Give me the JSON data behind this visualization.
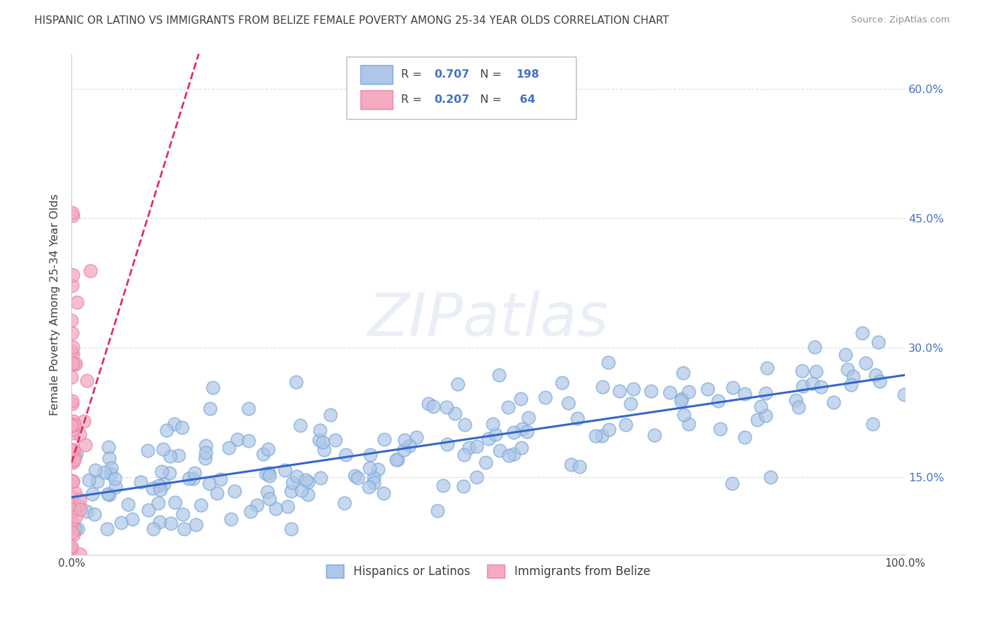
{
  "title": "HISPANIC OR LATINO VS IMMIGRANTS FROM BELIZE FEMALE POVERTY AMONG 25-34 YEAR OLDS CORRELATION CHART",
  "source": "Source: ZipAtlas.com",
  "ylabel": "Female Poverty Among 25-34 Year Olds",
  "xlim": [
    0,
    1.0
  ],
  "ylim": [
    0.06,
    0.64
  ],
  "watermark": "ZIPatlas",
  "blue_R": 0.707,
  "blue_N": 198,
  "pink_R": 0.207,
  "pink_N": 64,
  "blue_color": "#aec6e8",
  "pink_color": "#f4aabf",
  "blue_edge_color": "#7aa8d8",
  "pink_edge_color": "#e888a8",
  "blue_line_color": "#3366cc",
  "pink_line_color": "#e03060",
  "legend_blue_label": "Hispanics or Latinos",
  "legend_pink_label": "Immigrants from Belize",
  "right_yticks": [
    0.15,
    0.3,
    0.45,
    0.6
  ],
  "right_ytick_labels": [
    "15.0%",
    "30.0%",
    "45.0%",
    "60.0%"
  ],
  "xtick_labels_show": [
    "0.0%",
    "100.0%"
  ],
  "grid_color": "#d8d8d8",
  "background_color": "#ffffff",
  "title_color": "#404040",
  "source_color": "#909090",
  "blue_val_color": "#4472c4",
  "label_color": "#404040"
}
